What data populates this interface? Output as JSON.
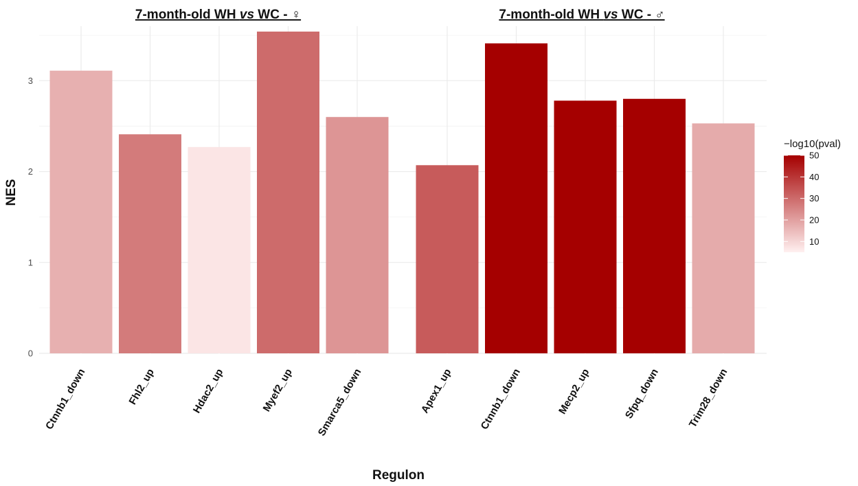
{
  "chart_data": {
    "type": "bar",
    "xlabel": "Regulon",
    "ylabel": "NES",
    "ylim": [
      0,
      3.6
    ],
    "y_ticks": [
      0,
      1,
      2,
      3
    ],
    "grid": true,
    "legend": {
      "title": "−log10(pval)",
      "position": "right",
      "range": [
        5,
        50
      ],
      "ticks": [
        10,
        20,
        30,
        40,
        50
      ],
      "low_color": "#fff0f0",
      "high_color": "#a50000"
    },
    "panels": [
      {
        "title_pre": "7-month-old WH ",
        "title_italic": "vs",
        "title_post": " WC - ♀",
        "categories": [
          "Ctnnb1_down",
          "Fhl2_up",
          "Hdac2_up",
          "Myef2_up",
          "Smarca5_down"
        ],
        "values": [
          3.11,
          2.41,
          2.27,
          3.54,
          2.6
        ],
        "neg_log10_pval": [
          17,
          27,
          7,
          30,
          22
        ]
      },
      {
        "title_pre": "7-month-old WH ",
        "title_italic": "vs",
        "title_post": " WC - ♂",
        "categories": [
          "Apex1_up",
          "Ctnnb1_down",
          "Mecp2_up",
          "Sfpq_down",
          "Trim28_down"
        ],
        "values": [
          2.07,
          3.41,
          2.78,
          2.8,
          2.53
        ],
        "neg_log10_pval": [
          33,
          50,
          50,
          50,
          18
        ]
      }
    ]
  }
}
